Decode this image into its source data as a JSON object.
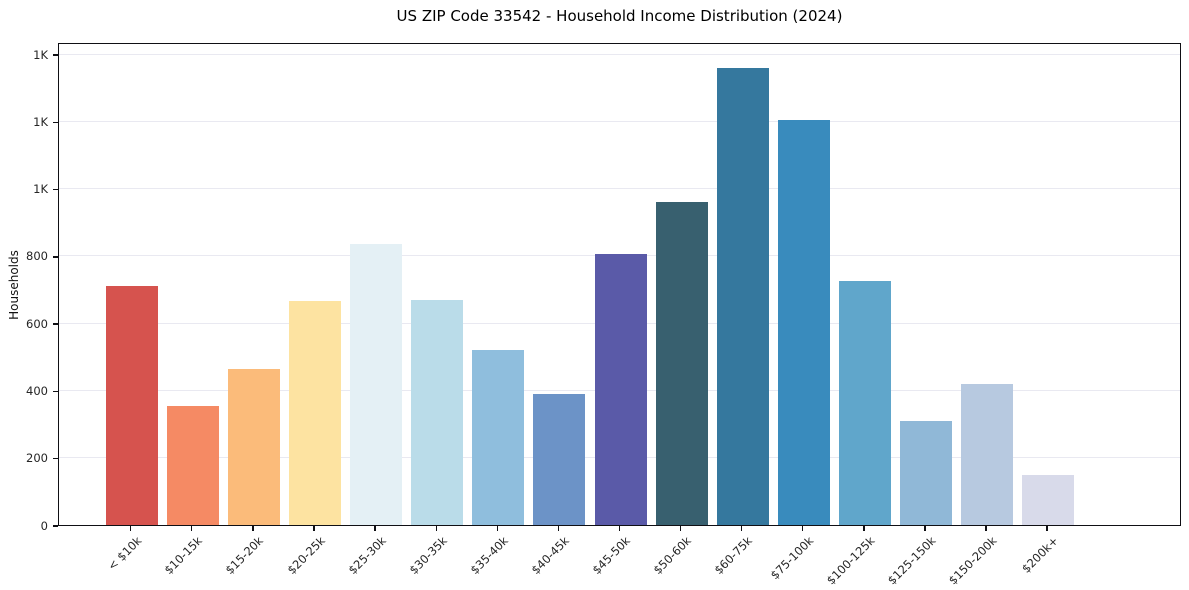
{
  "chart_data": {
    "type": "bar",
    "title": "US ZIP Code 33542 - Household Income Distribution (2024)",
    "xlabel": "",
    "ylabel": "Households",
    "categories": [
      "< $10k",
      "$10-15k",
      "$15-20k",
      "$20-25k",
      "$25-30k",
      "$30-35k",
      "$35-40k",
      "$40-45k",
      "$45-50k",
      "$50-60k",
      "$60-75k",
      "$75-100k",
      "$100-125k",
      "$125-150k",
      "$150-200k",
      "$200k+"
    ],
    "values": [
      710,
      355,
      465,
      665,
      835,
      670,
      520,
      390,
      805,
      960,
      1360,
      1205,
      725,
      310,
      420,
      150
    ],
    "bar_colors": [
      "#d6534e",
      "#f58a64",
      "#fbbb7a",
      "#fde3a1",
      "#e4f0f5",
      "#badce9",
      "#8fbedd",
      "#6c93c7",
      "#5a5aa8",
      "#38606f",
      "#35789e",
      "#398bbd",
      "#60a6cb",
      "#90b8d7",
      "#b7c9e0",
      "#d8daea"
    ],
    "ylim": [
      0,
      1436
    ],
    "yticks": [
      {
        "value": 0,
        "label": "0"
      },
      {
        "value": 200,
        "label": "200"
      },
      {
        "value": 400,
        "label": "400"
      },
      {
        "value": 600,
        "label": "600"
      },
      {
        "value": 800,
        "label": "800"
      },
      {
        "value": 1000,
        "label": "1K"
      },
      {
        "value": 1200,
        "label": "1K"
      },
      {
        "value": 1400,
        "label": "1K"
      }
    ],
    "grid": true,
    "legend": false,
    "grid_color": "#e9e9f1",
    "spine_color": "#0f0f14",
    "tick_text_color": "#262626",
    "background": "#ffffff"
  }
}
